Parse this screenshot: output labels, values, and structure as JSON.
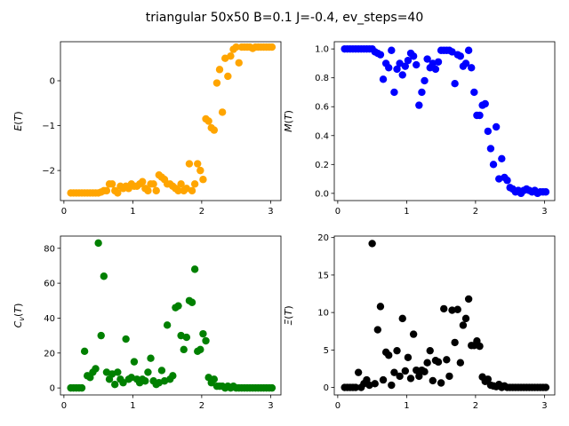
{
  "title": "triangular 50x50  B=0.1 J=-0.4, ev_steps=40",
  "chart_data": [
    {
      "type": "scatter",
      "ylabel_main": "E",
      "ylabel_arg": "T",
      "xlim": [
        -0.05,
        3.15
      ],
      "ylim": [
        -2.67,
        0.87
      ],
      "xticks": [
        0,
        1,
        2,
        3
      ],
      "yticks": [
        -2,
        -1,
        0
      ],
      "color": "#ffa500",
      "x": [
        0.1,
        0.14,
        0.18,
        0.22,
        0.26,
        0.3,
        0.34,
        0.38,
        0.42,
        0.46,
        0.5,
        0.54,
        0.58,
        0.62,
        0.66,
        0.7,
        0.74,
        0.78,
        0.82,
        0.86,
        0.9,
        0.94,
        0.98,
        1.02,
        1.06,
        1.1,
        1.14,
        1.18,
        1.22,
        1.26,
        1.3,
        1.34,
        1.38,
        1.42,
        1.46,
        1.5,
        1.54,
        1.58,
        1.62,
        1.66,
        1.7,
        1.74,
        1.78,
        1.82,
        1.86,
        1.9,
        1.94,
        1.98,
        2.02,
        2.06,
        2.1,
        2.14,
        2.18,
        2.22,
        2.26,
        2.3,
        2.34,
        2.38,
        2.42,
        2.46,
        2.5,
        2.54,
        2.58,
        2.62,
        2.66,
        2.7,
        2.74,
        2.78,
        2.82,
        2.86,
        2.9,
        2.94,
        2.98,
        3.02
      ],
      "y": [
        -2.5,
        -2.5,
        -2.5,
        -2.5,
        -2.5,
        -2.5,
        -2.5,
        -2.5,
        -2.5,
        -2.5,
        -2.5,
        -2.48,
        -2.45,
        -2.45,
        -2.3,
        -2.3,
        -2.45,
        -2.5,
        -2.35,
        -2.4,
        -2.35,
        -2.4,
        -2.3,
        -2.35,
        -2.35,
        -2.3,
        -2.25,
        -2.4,
        -2.45,
        -2.3,
        -2.3,
        -2.45,
        -2.1,
        -2.15,
        -2.2,
        -2.3,
        -2.3,
        -2.35,
        -2.4,
        -2.45,
        -2.3,
        -2.45,
        -2.4,
        -1.85,
        -2.45,
        -2.3,
        -1.85,
        -2.0,
        -2.2,
        -0.85,
        -0.9,
        -1.05,
        -1.1,
        -0.05,
        0.25,
        -0.7,
        0.5,
        0.1,
        0.55,
        0.7,
        0.75,
        0.4,
        0.75,
        0.75,
        0.75,
        0.75,
        0.72,
        0.75,
        0.75,
        0.75,
        0.75,
        0.75,
        0.75,
        0.75
      ]
    },
    {
      "type": "scatter",
      "ylabel_main": "M",
      "ylabel_arg": "T",
      "xlim": [
        -0.05,
        3.15
      ],
      "ylim": [
        -0.05,
        1.05
      ],
      "xticks": [
        0,
        1,
        2,
        3
      ],
      "yticks": [
        0.0,
        0.2,
        0.4,
        0.6,
        0.8,
        1.0
      ],
      "color": "#0000ff",
      "x": [
        0.1,
        0.14,
        0.18,
        0.22,
        0.26,
        0.3,
        0.34,
        0.38,
        0.42,
        0.46,
        0.5,
        0.54,
        0.58,
        0.62,
        0.66,
        0.7,
        0.74,
        0.78,
        0.82,
        0.86,
        0.9,
        0.94,
        0.98,
        1.02,
        1.06,
        1.1,
        1.14,
        1.18,
        1.22,
        1.26,
        1.3,
        1.34,
        1.38,
        1.42,
        1.46,
        1.5,
        1.54,
        1.58,
        1.62,
        1.66,
        1.7,
        1.74,
        1.78,
        1.82,
        1.86,
        1.9,
        1.94,
        1.98,
        2.02,
        2.06,
        2.1,
        2.14,
        2.18,
        2.22,
        2.26,
        2.3,
        2.34,
        2.38,
        2.42,
        2.46,
        2.5,
        2.54,
        2.58,
        2.62,
        2.66,
        2.7,
        2.74,
        2.78,
        2.82,
        2.86,
        2.9,
        2.94,
        2.98,
        3.02
      ],
      "y": [
        1.0,
        1.0,
        1.0,
        1.0,
        1.0,
        1.0,
        1.0,
        1.0,
        1.0,
        1.0,
        1.0,
        0.98,
        0.97,
        0.96,
        0.79,
        0.9,
        0.87,
        0.99,
        0.7,
        0.86,
        0.9,
        0.82,
        0.88,
        0.92,
        0.97,
        0.95,
        0.89,
        0.61,
        0.7,
        0.78,
        0.93,
        0.87,
        0.9,
        0.86,
        0.91,
        0.99,
        0.99,
        0.99,
        0.99,
        0.98,
        0.76,
        0.96,
        0.95,
        0.88,
        0.9,
        0.99,
        0.87,
        0.7,
        0.54,
        0.54,
        0.61,
        0.62,
        0.43,
        0.31,
        0.2,
        0.46,
        0.1,
        0.24,
        0.11,
        0.09,
        0.04,
        0.03,
        0.01,
        0.02,
        0.0,
        0.02,
        0.03,
        0.02,
        0.01,
        0.02,
        0.0,
        0.01,
        0.01,
        0.01
      ]
    },
    {
      "type": "scatter",
      "ylabel_main": "C",
      "ylabel_sub": "v",
      "ylabel_arg": "T",
      "xlim": [
        -0.05,
        3.15
      ],
      "ylim": [
        -4,
        87
      ],
      "xticks": [
        0,
        1,
        2,
        3
      ],
      "yticks": [
        0,
        20,
        40,
        60,
        80
      ],
      "color": "#008000",
      "x": [
        0.1,
        0.14,
        0.18,
        0.22,
        0.26,
        0.3,
        0.34,
        0.38,
        0.42,
        0.46,
        0.5,
        0.54,
        0.58,
        0.62,
        0.66,
        0.7,
        0.74,
        0.78,
        0.82,
        0.86,
        0.9,
        0.94,
        0.98,
        1.02,
        1.06,
        1.1,
        1.14,
        1.18,
        1.22,
        1.26,
        1.3,
        1.34,
        1.38,
        1.42,
        1.46,
        1.5,
        1.54,
        1.58,
        1.62,
        1.66,
        1.7,
        1.74,
        1.78,
        1.82,
        1.86,
        1.9,
        1.94,
        1.98,
        2.02,
        2.06,
        2.1,
        2.14,
        2.18,
        2.22,
        2.26,
        2.3,
        2.34,
        2.38,
        2.42,
        2.46,
        2.5,
        2.54,
        2.58,
        2.62,
        2.66,
        2.7,
        2.74,
        2.78,
        2.82,
        2.86,
        2.9,
        2.94,
        2.98,
        3.02
      ],
      "y": [
        0,
        0,
        0,
        0,
        0,
        21,
        7,
        6,
        9,
        11,
        83,
        30,
        64,
        9,
        5,
        8,
        2,
        9,
        5,
        3,
        28,
        5,
        6,
        15,
        5,
        3,
        5,
        4,
        9,
        17,
        4,
        2,
        3,
        10,
        4,
        36,
        5,
        7,
        46,
        47,
        30,
        22,
        29,
        50,
        49,
        68,
        21,
        22,
        31,
        27,
        6,
        3,
        5,
        1,
        1,
        1,
        0,
        1,
        0,
        1,
        0,
        0,
        0,
        0,
        0,
        0,
        0,
        0,
        0,
        0,
        0,
        0,
        0,
        0
      ]
    },
    {
      "type": "scatter",
      "ylabel_main": "Ξ",
      "ylabel_arg": "T",
      "xlim": [
        -0.05,
        3.15
      ],
      "ylim": [
        -1,
        20.2
      ],
      "xticks": [
        0,
        1,
        2,
        3
      ],
      "yticks": [
        0,
        5,
        10,
        15,
        20
      ],
      "color": "#000000",
      "x": [
        0.1,
        0.14,
        0.18,
        0.22,
        0.26,
        0.3,
        0.34,
        0.38,
        0.42,
        0.46,
        0.5,
        0.54,
        0.58,
        0.62,
        0.66,
        0.7,
        0.74,
        0.78,
        0.82,
        0.86,
        0.9,
        0.94,
        0.98,
        1.02,
        1.06,
        1.1,
        1.14,
        1.18,
        1.22,
        1.26,
        1.3,
        1.34,
        1.38,
        1.42,
        1.46,
        1.5,
        1.54,
        1.58,
        1.62,
        1.66,
        1.7,
        1.74,
        1.78,
        1.82,
        1.86,
        1.9,
        1.94,
        1.98,
        2.02,
        2.06,
        2.1,
        2.14,
        2.18,
        2.22,
        2.26,
        2.3,
        2.34,
        2.38,
        2.42,
        2.46,
        2.5,
        2.54,
        2.58,
        2.62,
        2.66,
        2.7,
        2.74,
        2.78,
        2.82,
        2.86,
        2.9,
        2.94,
        2.98,
        3.02
      ],
      "y": [
        0,
        0,
        0,
        0,
        0,
        2,
        0,
        0.5,
        1,
        0.3,
        19.2,
        0.5,
        7.7,
        10.8,
        1,
        4.7,
        4.3,
        0.3,
        2,
        4.9,
        1.5,
        9.2,
        2.2,
        4,
        1.2,
        7.1,
        2.3,
        1.5,
        2.3,
        2.1,
        3.3,
        4.9,
        0.9,
        3.6,
        3.4,
        0.6,
        10.5,
        3.7,
        1.5,
        10.3,
        6,
        10.4,
        3.3,
        8.3,
        9.2,
        11.8,
        5.6,
        5.6,
        6.2,
        5.5,
        1.4,
        0.8,
        1.1,
        0.3,
        0.2,
        0.1,
        0.4,
        0,
        0.2,
        0,
        0,
        0,
        0,
        0,
        0,
        0,
        0,
        0,
        0,
        0,
        0,
        0,
        0,
        0
      ]
    }
  ]
}
